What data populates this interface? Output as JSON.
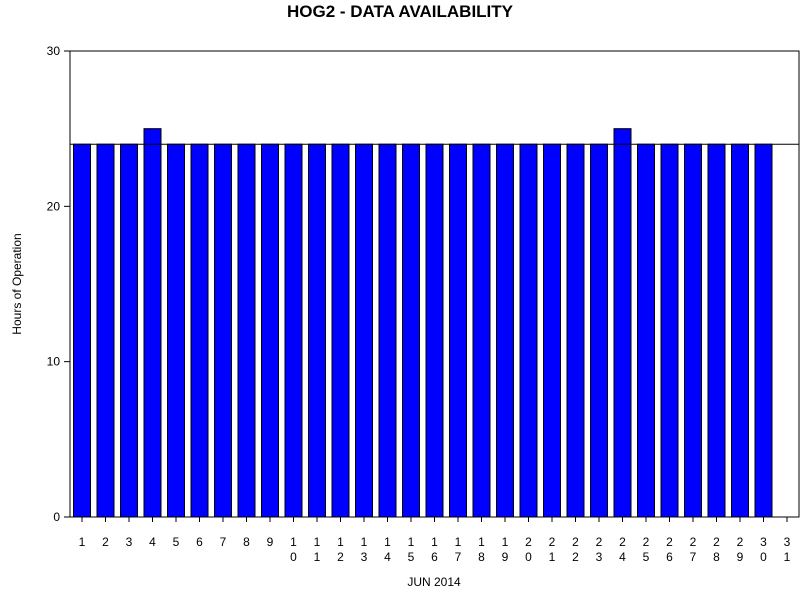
{
  "chart_data": {
    "type": "bar",
    "title": "HOG2 - DATA AVAILABILITY",
    "xlabel": "JUN 2014",
    "ylabel": "Hours of Operation",
    "categories": [
      "1",
      "2",
      "3",
      "4",
      "5",
      "6",
      "7",
      "8",
      "9",
      "10",
      "11",
      "12",
      "13",
      "14",
      "15",
      "16",
      "17",
      "18",
      "19",
      "20",
      "21",
      "22",
      "23",
      "24",
      "25",
      "26",
      "27",
      "28",
      "29",
      "30",
      "31"
    ],
    "values": [
      24,
      24,
      24,
      25,
      24,
      24,
      24,
      24,
      24,
      24,
      24,
      24,
      24,
      24,
      24,
      24,
      24,
      24,
      24,
      24,
      24,
      24,
      24,
      25,
      24,
      24,
      24,
      24,
      24,
      24,
      null
    ],
    "ylim": [
      0,
      30
    ],
    "yticks": [
      0,
      10,
      20,
      30
    ],
    "reference_line": 24,
    "bar_color": "#0000ff",
    "bar_edge_color": "#000000",
    "grid": false
  }
}
